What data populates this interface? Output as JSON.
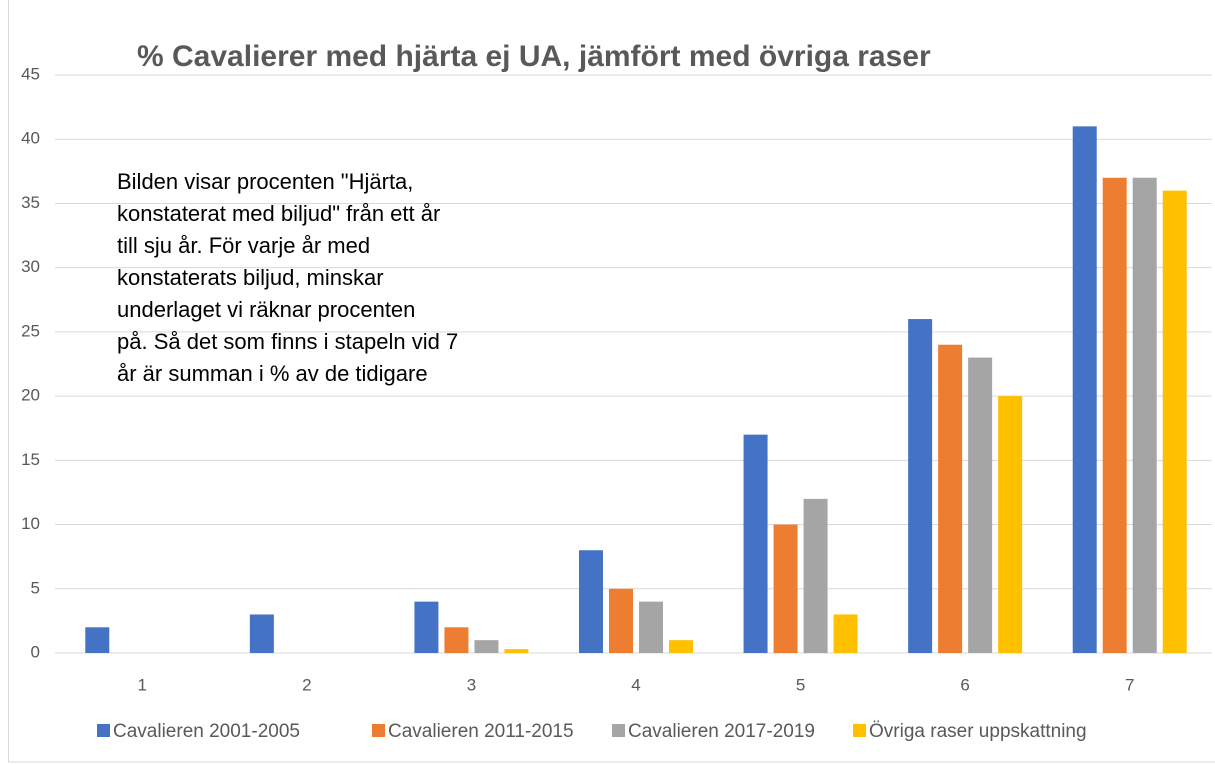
{
  "chart_data": {
    "type": "bar",
    "title": "% Cavalierer med hjärta ej UA, jämfört med övriga raser",
    "annotation": [
      "Bilden visar procenten \"Hjärta,",
      "konstaterat med biljud\" från ett år",
      "till sju år. För varje år med",
      "konstaterats biljud, minskar",
      "underlaget vi räknar  procenten",
      "på. Så det som finns i stapeln vid 7",
      "år är summan i % av de tidigare"
    ],
    "categories": [
      "1",
      "2",
      "3",
      "4",
      "5",
      "6",
      "7"
    ],
    "series": [
      {
        "name": "Cavalieren 2001-2005",
        "color": "#4472c4",
        "values": [
          2,
          3,
          4,
          8,
          17,
          26,
          41
        ]
      },
      {
        "name": "Cavalieren 2011-2015",
        "color": "#ed7d31",
        "values": [
          0,
          0,
          2,
          5,
          10,
          24,
          37
        ]
      },
      {
        "name": "Cavalieren 2017-2019",
        "color": "#a5a5a5",
        "values": [
          0,
          0,
          1,
          4,
          12,
          23,
          37
        ]
      },
      {
        "name": "Övriga raser uppskattning",
        "color": "#ffc000",
        "values": [
          0,
          0,
          0.3,
          1,
          3,
          20,
          36
        ]
      }
    ],
    "ylim": [
      0,
      45
    ],
    "yticks": [
      0,
      5,
      10,
      15,
      20,
      25,
      30,
      35,
      40,
      45
    ],
    "grid": true,
    "legend": "bottom"
  }
}
